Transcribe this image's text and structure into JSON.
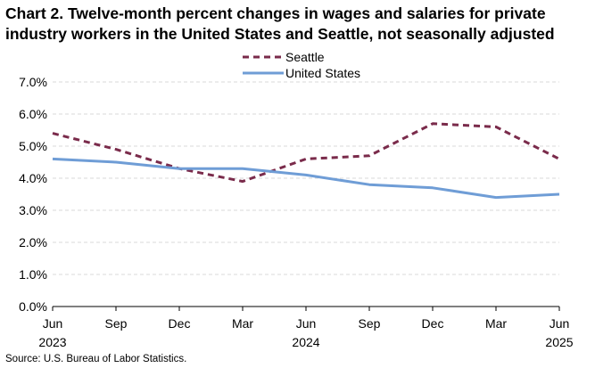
{
  "title": "Chart 2. Twelve-month percent changes in wages and salaries for private industry workers in the United States and Seattle, not seasonally adjusted",
  "source": "Source: U.S. Bureau of Labor Statistics.",
  "colors": {
    "seattle": "#7a2b4b",
    "us": "#6f9dd6",
    "grid": "#d9d9d9",
    "axis": "#000000"
  },
  "chart_data": {
    "type": "line",
    "title": "Chart 2. Twelve-month percent changes in wages and salaries for private industry workers in the United States and Seattle, not seasonally adjusted",
    "xlabel": "",
    "ylabel": "",
    "categories": [
      "Jun",
      "Sep",
      "Dec",
      "Mar",
      "Jun",
      "Sep",
      "Dec",
      "Mar",
      "Jun"
    ],
    "year_labels": [
      "2023",
      "",
      "",
      "",
      "2024",
      "",
      "",
      "",
      "2025"
    ],
    "ylim": [
      0,
      7
    ],
    "yticks": [
      "0.0%",
      "1.0%",
      "2.0%",
      "3.0%",
      "4.0%",
      "5.0%",
      "6.0%",
      "7.0%"
    ],
    "grid": true,
    "legend_position": "top-center",
    "series": [
      {
        "name": "Seattle",
        "style": "dashed",
        "values": [
          5.4,
          4.9,
          4.3,
          3.9,
          4.6,
          4.7,
          5.7,
          5.6,
          4.6
        ]
      },
      {
        "name": "United States",
        "style": "solid",
        "values": [
          4.6,
          4.5,
          4.3,
          4.3,
          4.1,
          3.8,
          3.7,
          3.4,
          3.5
        ]
      }
    ]
  }
}
